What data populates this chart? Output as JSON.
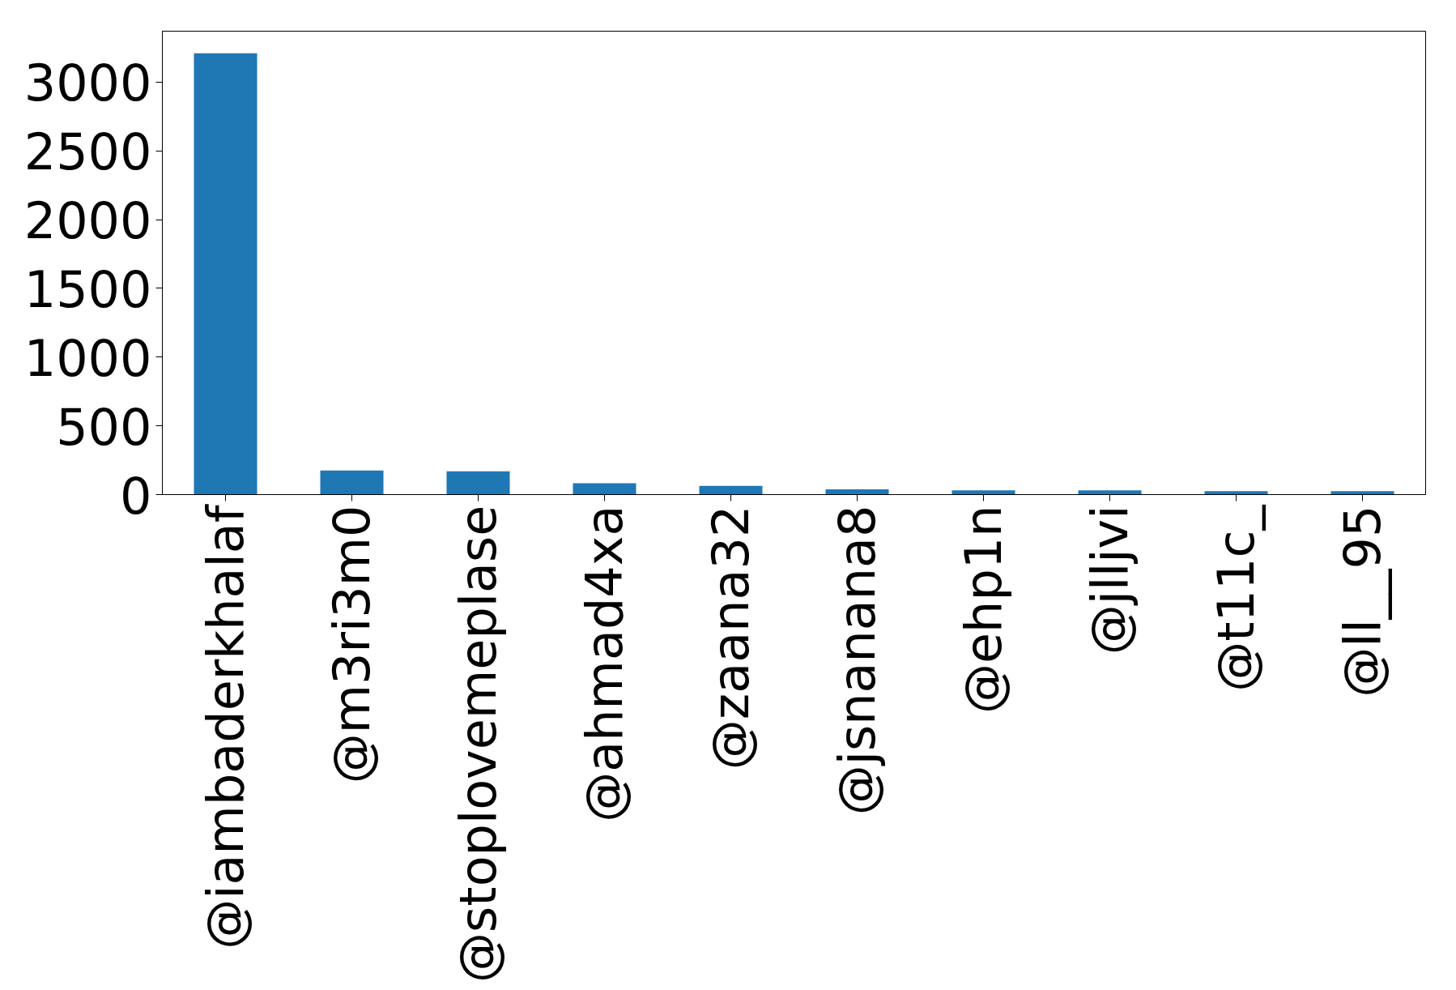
{
  "chart_data": {
    "type": "bar",
    "categories": [
      "@iambaderkhalaf",
      "@m3ri3m0",
      "@stoplovemeplase",
      "@ahmad4xa",
      "@zaana32",
      "@jsnanana8",
      "@ehp1n",
      "@jlljvi",
      "@t11c_",
      "@ll__95"
    ],
    "values": [
      3210,
      176,
      170,
      82,
      63,
      38,
      31,
      31,
      25,
      25
    ],
    "color": "#1f77b4",
    "ylim": [
      0,
      3370
    ],
    "yticks": [
      0,
      500,
      1000,
      1500,
      2000,
      2500,
      3000
    ],
    "grid": false
  }
}
